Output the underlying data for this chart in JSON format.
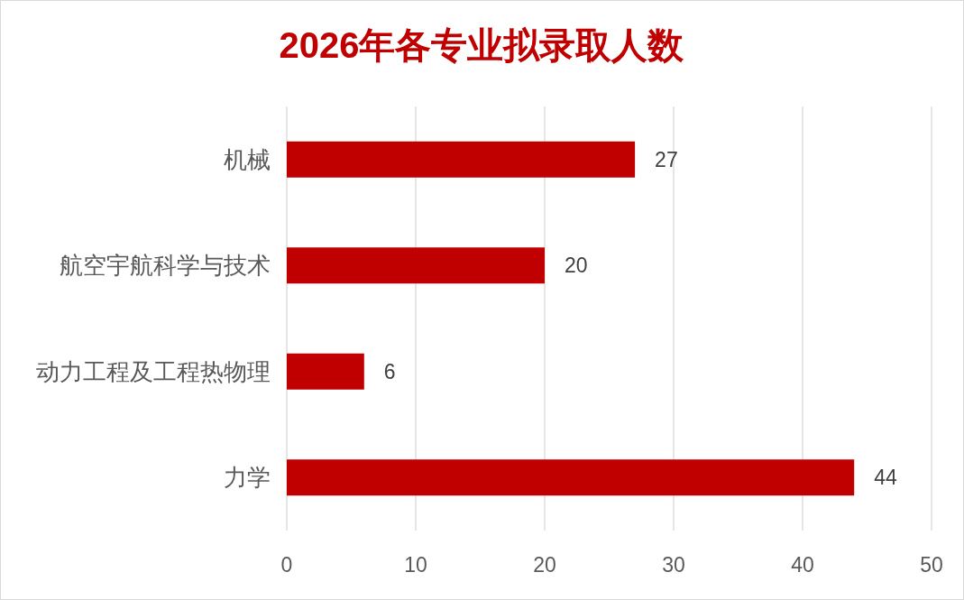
{
  "chart_data": {
    "type": "bar",
    "title": "2026年各专业拟录取人数",
    "orientation": "horizontal",
    "categories": [
      "机械",
      "航空宇航科学与技术",
      "动力工程及工程热物理",
      "力学"
    ],
    "values": [
      27,
      20,
      6,
      44
    ],
    "color": "#c00000",
    "xlim": [
      0,
      50
    ],
    "xticks": [
      0,
      10,
      20,
      30,
      40,
      50
    ],
    "grid": "x",
    "data_labels": true
  }
}
